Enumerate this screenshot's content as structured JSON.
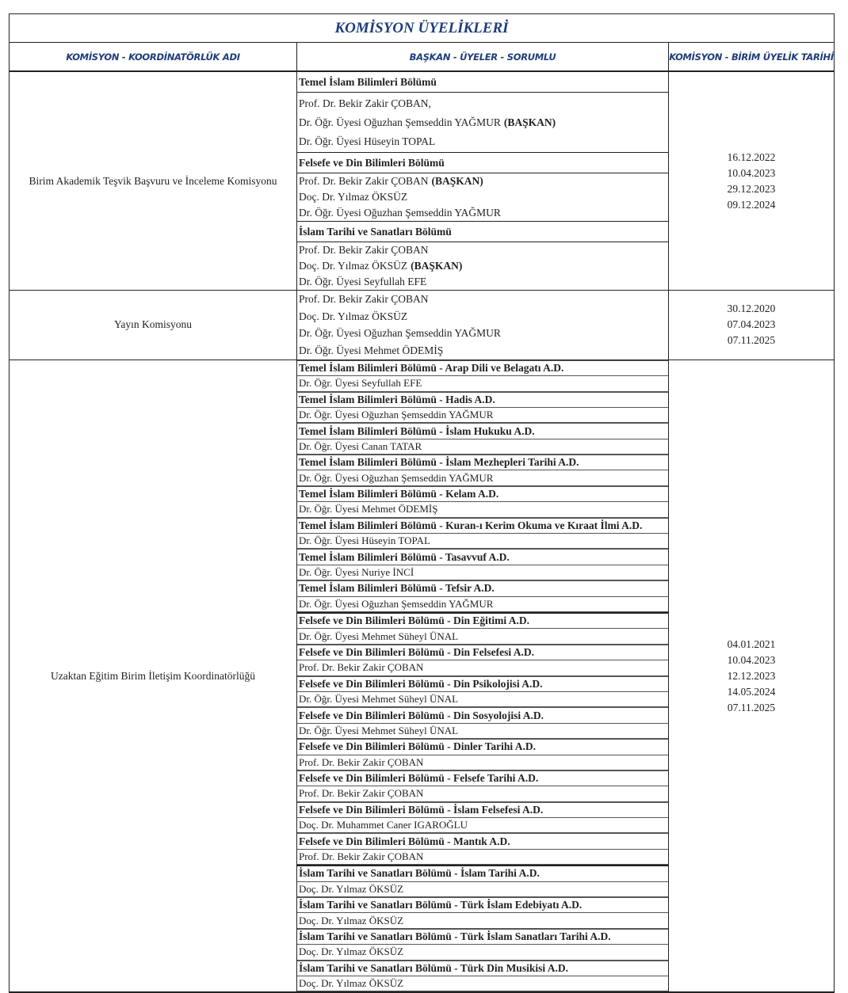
{
  "title": "KOMİSYON ÜYELİKLERİ",
  "headers": [
    "KOMİSYON - KOORDİNATÖRLÜK ADI",
    "BAŞKAN - ÜYELER - SORUMLU",
    "KOMİSYON - BİRİM ÜYELİK TARİHİ"
  ],
  "sections": [
    {
      "name": "Birim Akademik Teşvik Başvuru ve İnceleme Komisyonu",
      "dates": [
        "16.12.2022",
        "10.04.2023",
        "29.12.2023",
        "09.12.2024"
      ],
      "groups": [
        {
          "heading": "Temel İslam Bilimleri Bölümü",
          "members": [
            {
              "name": "Prof. Dr. Bekir Zakir ÇOBAN,"
            },
            {
              "name": "Dr. Öğr. Üyesi Oğuzhan Şemseddin YAĞMUR",
              "role": "(BAŞKAN)"
            },
            {
              "name": "Dr. Öğr. Üyesi Hüseyin TOPAL"
            }
          ]
        },
        {
          "heading": "Felsefe ve Din Bilimleri Bölümü",
          "members": [
            {
              "name": "Prof. Dr. Bekir Zakir ÇOBAN",
              "role": "(BAŞKAN)"
            },
            {
              "name": "Doç. Dr. Yılmaz ÖKSÜZ"
            },
            {
              "name": "Dr. Öğr. Üyesi Oğuzhan Şemseddin YAĞMUR"
            }
          ]
        },
        {
          "heading": "İslam Tarihi ve Sanatları Bölümü",
          "members": [
            {
              "name": "Prof. Dr. Bekir Zakir ÇOBAN"
            },
            {
              "name": "Doç. Dr. Yılmaz ÖKSÜZ",
              "role": "(BAŞKAN)"
            },
            {
              "name": "Dr. Öğr. Üyesi Seyfullah EFE"
            }
          ]
        }
      ]
    },
    {
      "name": "Yayın Komisyonu",
      "dates": [
        "30.12.2020",
        "07.04.2023",
        "07.11.2025"
      ],
      "groups": [
        {
          "members": [
            {
              "name": "Prof. Dr. Bekir Zakir ÇOBAN"
            },
            {
              "name": "Doç. Dr. Yılmaz ÖKSÜZ"
            },
            {
              "name": "Dr. Öğr. Üyesi Oğuzhan Şemseddin YAĞMUR"
            },
            {
              "name": "Dr. Öğr. Üyesi Mehmet ÖDEMİŞ"
            }
          ]
        }
      ]
    },
    {
      "name": "Uzaktan Eğitim Birim İletişim Koordinatörlüğü",
      "dates": [
        "04.01.2021",
        "10.04.2023",
        "12.12.2023",
        "14.05.2024",
        "07.11.2025"
      ],
      "groups": [
        {
          "heading": "Temel İslam Bilimleri Bölümü  - Arap Dili ve Belagatı A.D.",
          "members": [
            {
              "name": "Dr. Öğr. Üyesi Seyfullah EFE"
            }
          ]
        },
        {
          "heading": "Temel İslam Bilimleri Bölümü  - Hadis A.D.",
          "members": [
            {
              "name": "Dr. Öğr. Üyesi Oğuzhan Şemseddin YAĞMUR"
            }
          ]
        },
        {
          "heading": "Temel İslam Bilimleri Bölümü  - İslam Hukuku A.D.",
          "members": [
            {
              "name": "Dr. Öğr. Üyesi Canan TATAR"
            }
          ]
        },
        {
          "heading": "Temel İslam Bilimleri Bölümü  - İslam Mezhepleri Tarihi A.D.",
          "members": [
            {
              "name": "Dr. Öğr. Üyesi Oğuzhan Şemseddin YAĞMUR"
            }
          ]
        },
        {
          "heading": "Temel İslam Bilimleri Bölümü  - Kelam A.D.",
          "members": [
            {
              "name": "Dr. Öğr. Üyesi Mehmet ÖDEMİŞ"
            }
          ]
        },
        {
          "heading": "Temel İslam Bilimleri Bölümü  - Kuran-ı Kerim Okuma ve Kıraat İlmi A.D.",
          "members": [
            {
              "name": "Dr. Öğr. Üyesi Hüseyin TOPAL"
            }
          ]
        },
        {
          "heading": "Temel İslam Bilimleri Bölümü  - Tasavvuf  A.D.",
          "members": [
            {
              "name": "Dr. Öğr. Üyesi Nuriye İNCİ"
            }
          ]
        },
        {
          "heading": "Temel İslam Bilimleri Bölümü  - Tefsir A.D.",
          "members": [
            {
              "name": "Dr. Öğr. Üyesi Oğuzhan Şemseddin YAĞMUR"
            }
          ]
        },
        {
          "heading": "Felsefe ve Din Bilimleri Bölümü - Din Eğitimi  A.D.",
          "members": [
            {
              "name": "Dr. Öğr. Üyesi Mehmet Süheyl ÜNAL"
            }
          ]
        },
        {
          "heading": "Felsefe ve Din Bilimleri Bölümü - Din Felsefesi A.D.",
          "members": [
            {
              "name": "Prof. Dr. Bekir Zakir ÇOBAN"
            }
          ]
        },
        {
          "heading": "Felsefe ve Din Bilimleri Bölümü - Din Psikolojisi A.D.",
          "members": [
            {
              "name": "Dr. Öğr. Üyesi Mehmet Süheyl ÜNAL"
            }
          ]
        },
        {
          "heading": "Felsefe ve Din Bilimleri Bölümü - Din Sosyolojisi  A.D.",
          "members": [
            {
              "name": "Dr. Öğr. Üyesi Mehmet Süheyl ÜNAL"
            }
          ]
        },
        {
          "heading": "Felsefe ve Din Bilimleri Bölümü - Dinler Tarihi A.D.",
          "members": [
            {
              "name": "Prof. Dr. Bekir Zakir ÇOBAN"
            }
          ]
        },
        {
          "heading": "Felsefe ve Din Bilimleri Bölümü - Felsefe Tarihi A.D.",
          "members": [
            {
              "name": "Prof. Dr. Bekir Zakir ÇOBAN"
            }
          ]
        },
        {
          "heading": "Felsefe ve Din Bilimleri Bölümü - İslam Felsefesi A.D.",
          "members": [
            {
              "name": "Doç. Dr. Muhammet Caner IGAROĞLU"
            }
          ]
        },
        {
          "heading": "Felsefe ve Din Bilimleri Bölümü - Mantık A.D.",
          "members": [
            {
              "name": "Prof. Dr. Bekir Zakir ÇOBAN"
            }
          ]
        },
        {
          "heading": "İslam Tarihi ve Sanatları Bölümü - İslam Tarihi A.D.",
          "members": [
            {
              "name": "Doç. Dr. Yılmaz ÖKSÜZ"
            }
          ]
        },
        {
          "heading": "İslam Tarihi ve Sanatları Bölümü - Türk İslam Edebiyatı A.D.",
          "members": [
            {
              "name": "Doç. Dr. Yılmaz ÖKSÜZ"
            }
          ]
        },
        {
          "heading": "İslam Tarihi ve Sanatları Bölümü - Türk İslam Sanatları Tarihi A.D.",
          "members": [
            {
              "name": "Doç. Dr. Yılmaz ÖKSÜZ"
            }
          ]
        },
        {
          "heading": "İslam Tarihi ve Sanatları Bölümü - Türk Din Musikisi A.D.",
          "members": [
            {
              "name": "Doç. Dr. Yılmaz ÖKSÜZ"
            }
          ]
        }
      ]
    }
  ]
}
